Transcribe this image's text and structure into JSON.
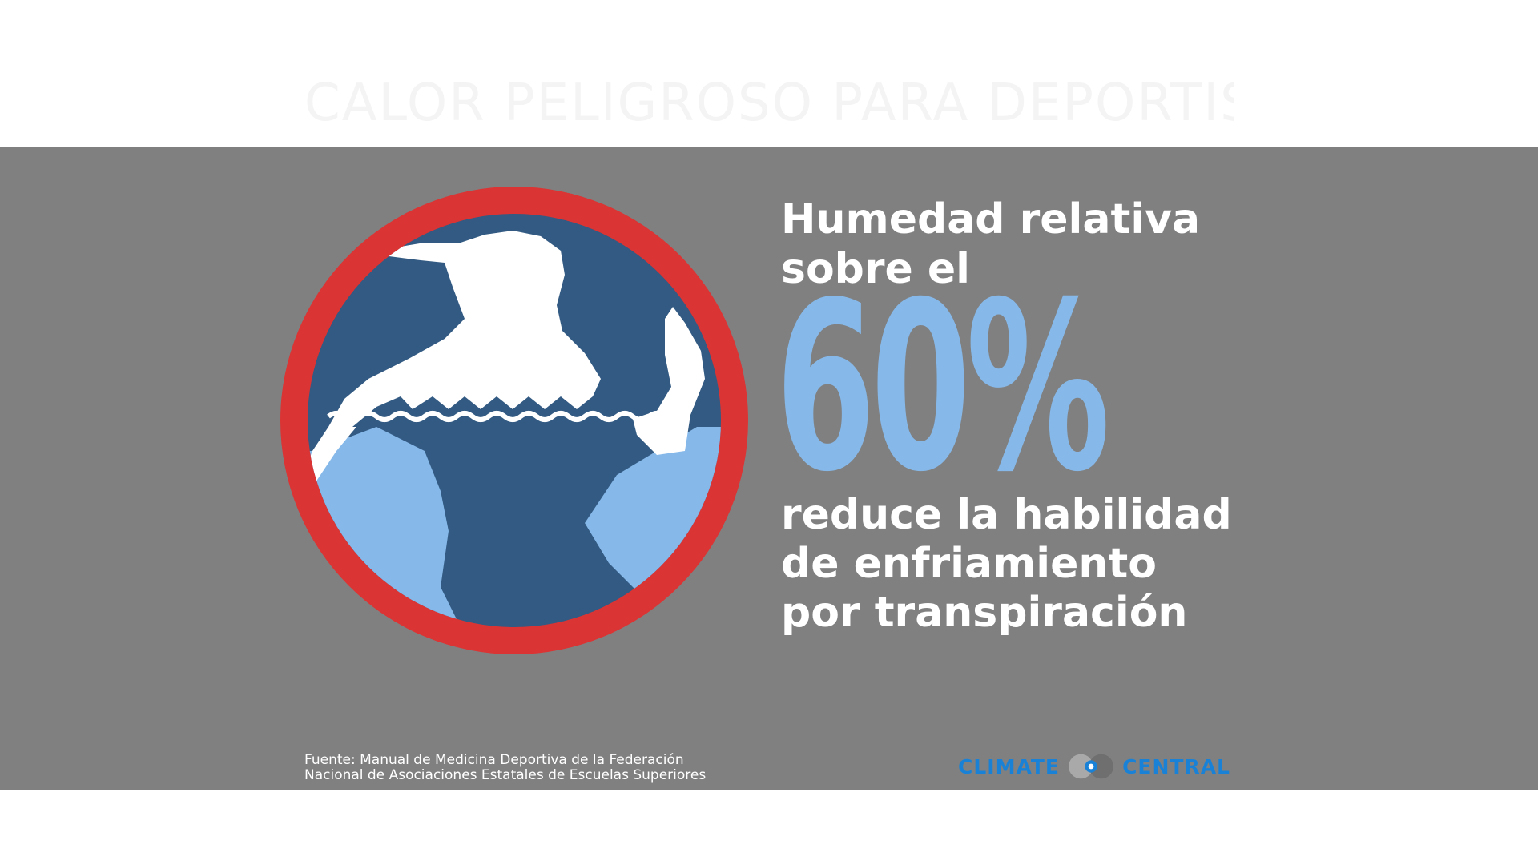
{
  "top_title": "CALOR PELIGROSO PARA DEPORTISTAS",
  "headline": {
    "line1": "Humedad relativa",
    "line2": "sobre el"
  },
  "big_value": "60%",
  "subline": {
    "line1": "reduce la habilidad",
    "line2": "de enfriamiento",
    "line3": "por transpiración"
  },
  "source": {
    "line1": "Fuente: Manual de Medicina Deportiva de la Federación",
    "line2": "Nacional de Asociaciones Estatales de Escuelas Superiores"
  },
  "logo": {
    "left_word": "CLIMATE",
    "right_word": "CENTRAL",
    "icon": "climate-central-logo-icon"
  },
  "emblem": {
    "icon": "swimmer-silhouette-icon"
  },
  "colors": {
    "panel": "#808080",
    "ring": "#db3434",
    "disc": "#325a82",
    "water": "#86b9ea",
    "accent_number": "#86b9ea",
    "logo": "#1a82d6"
  }
}
